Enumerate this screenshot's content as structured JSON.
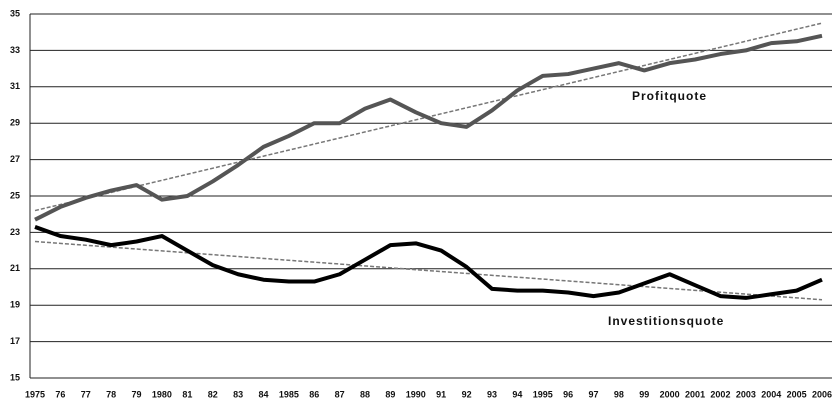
{
  "chart_data": {
    "type": "line",
    "categories": [
      "1975",
      "76",
      "77",
      "78",
      "79",
      "1980",
      "81",
      "82",
      "83",
      "84",
      "1985",
      "86",
      "87",
      "88",
      "89",
      "1990",
      "91",
      "92",
      "93",
      "94",
      "1995",
      "96",
      "97",
      "98",
      "99",
      "2000",
      "2001",
      "2002",
      "2003",
      "2004",
      "2005",
      "2006"
    ],
    "series": [
      {
        "name": "Profitquote",
        "color": "#555555",
        "values": [
          23.7,
          24.4,
          24.9,
          25.3,
          25.6,
          24.8,
          25.0,
          25.8,
          26.7,
          27.7,
          28.3,
          29.0,
          29.0,
          29.8,
          30.3,
          29.6,
          29.0,
          28.8,
          29.7,
          30.8,
          31.6,
          31.7,
          32.0,
          32.3,
          31.9,
          32.3,
          32.5,
          32.8,
          33.0,
          33.4,
          33.5,
          33.8
        ],
        "trend": {
          "start": 24.2,
          "end": 34.5
        }
      },
      {
        "name": "Investitionsquote",
        "color": "#000000",
        "values": [
          23.3,
          22.8,
          22.6,
          22.3,
          22.5,
          22.8,
          22.0,
          21.2,
          20.7,
          20.4,
          20.3,
          20.3,
          20.7,
          21.5,
          22.3,
          22.4,
          22.0,
          21.1,
          19.9,
          19.8,
          19.8,
          19.7,
          19.5,
          19.7,
          20.2,
          20.7,
          20.1,
          19.5,
          19.4,
          19.6,
          19.8,
          20.4
        ],
        "trend": {
          "start": 22.5,
          "end": 19.3
        }
      }
    ],
    "ylim": [
      15,
      35
    ],
    "yticks": [
      15,
      17,
      19,
      21,
      23,
      25,
      27,
      29,
      31,
      33,
      35
    ],
    "grid": true
  }
}
